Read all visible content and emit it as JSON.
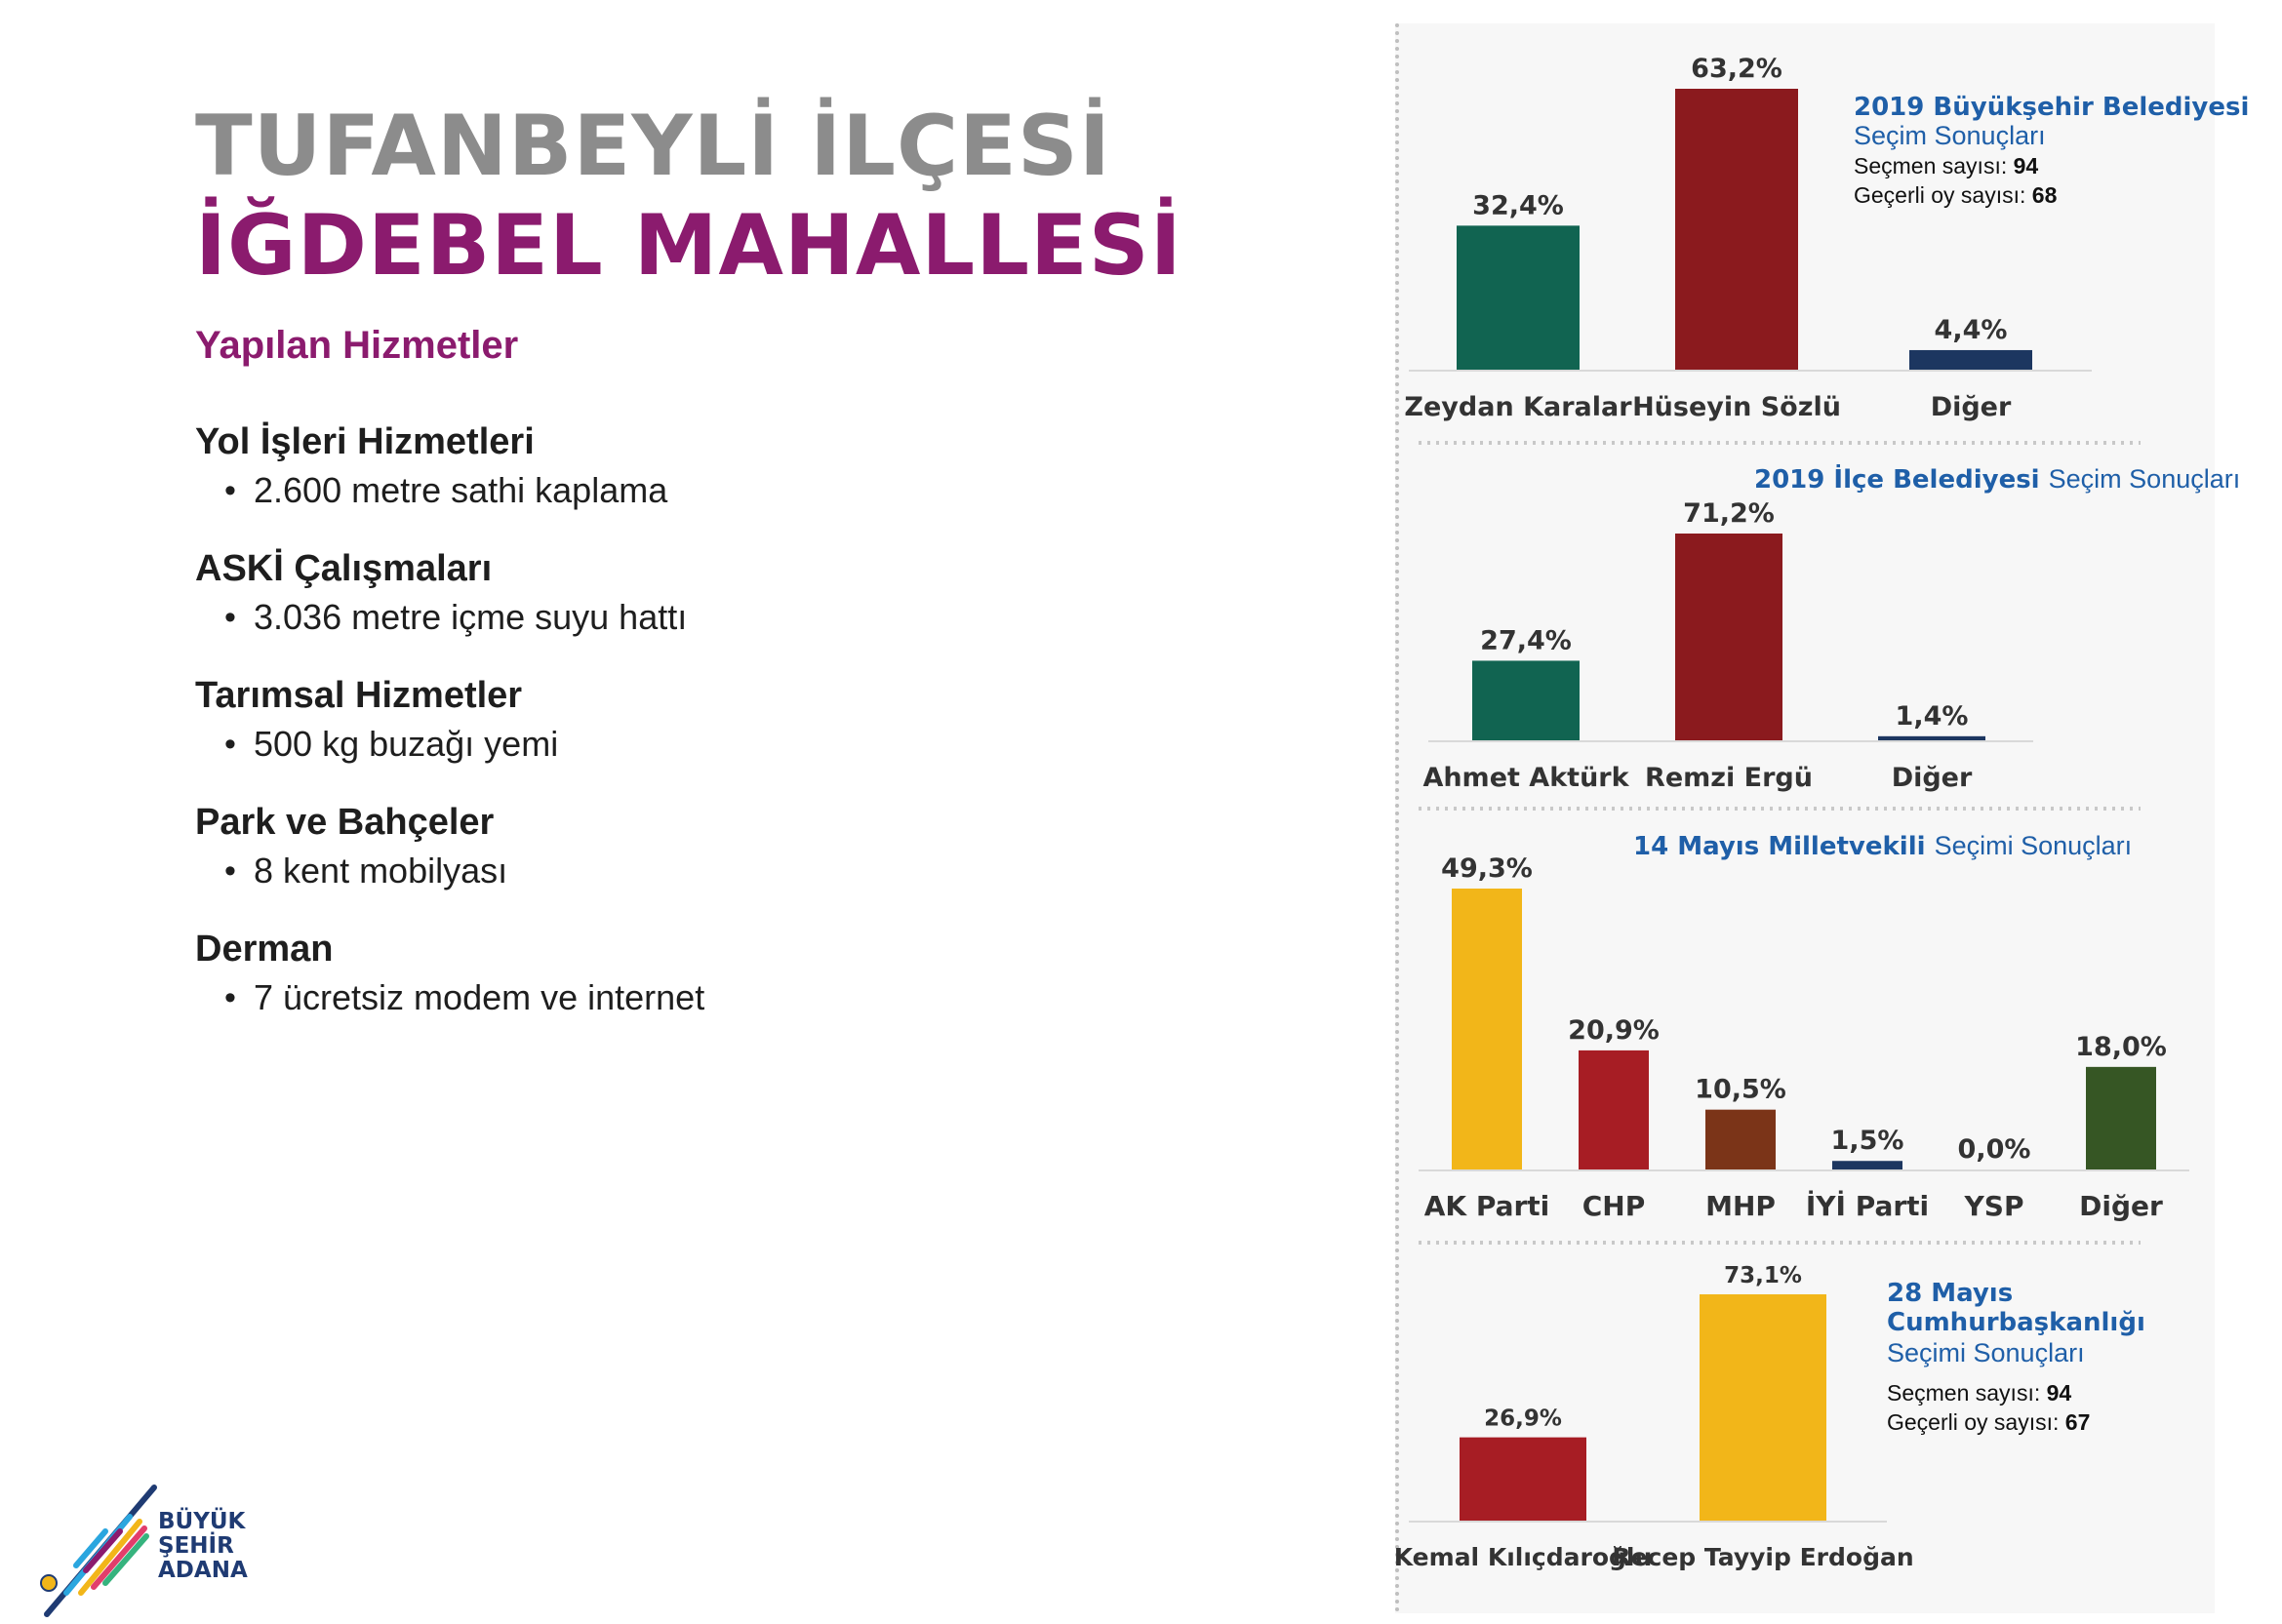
{
  "left": {
    "title_line1": "TUFANBEYLİ İLÇESİ",
    "title_line2": "İĞDEBEL MAHALLESİ",
    "services_heading": "Yapılan Hizmetler",
    "services": [
      {
        "heading": "Yol İşleri Hizmetleri",
        "item": "2.600 metre sathi kaplama"
      },
      {
        "heading": "ASKİ Çalışmaları",
        "item": "3.036 metre içme suyu hattı"
      },
      {
        "heading": "Tarımsal Hizmetler",
        "item": "500 kg buzağı yemi"
      },
      {
        "heading": "Park ve Bahçeler",
        "item": "8 kent mobilyası"
      },
      {
        "heading": "Derman",
        "item": "7 ücretsiz modem ve internet"
      }
    ]
  },
  "logo": {
    "line1": "BÜYÜK",
    "line2": "ŞEHİR",
    "line3": "ADANA"
  },
  "colors": {
    "green": "#116451",
    "darkred": "#8b1a1e",
    "navy": "#1c3660",
    "yellow": "#f2b619",
    "red": "#a71d24",
    "brown": "#7b3418",
    "olive": "#365624",
    "accent_purple": "#8b1b6e",
    "title_gray": "#8c8c8c",
    "chart_title_blue": "#1f5fa8"
  },
  "chart_data": [
    {
      "type": "bar",
      "title_bold": "2019 Büyükşehir Belediyesi",
      "title_rest": "Seçim Sonuçları",
      "info": [
        {
          "label": "Seçmen sayısı:",
          "value": "94"
        },
        {
          "label": "Geçerli oy sayısı:",
          "value": "68"
        }
      ],
      "categories": [
        "Zeydan Karalar",
        "Hüseyin Sözlü",
        "Diğer"
      ],
      "values": [
        32.4,
        63.2,
        4.4
      ],
      "labels": [
        "32,4%",
        "63,2%",
        "4,4%"
      ],
      "colors": [
        "#116451",
        "#8b1a1e",
        "#1c3660"
      ],
      "ylim": [
        0,
        63.2
      ]
    },
    {
      "type": "bar",
      "title_bold": "2019 İlçe Belediyesi",
      "title_rest": "Seçim Sonuçları",
      "categories": [
        "Ahmet Aktürk",
        "Remzi Ergü",
        "Diğer"
      ],
      "values": [
        27.4,
        71.2,
        1.4
      ],
      "labels": [
        "27,4%",
        "71,2%",
        "1,4%"
      ],
      "colors": [
        "#116451",
        "#8b1a1e",
        "#1c3660"
      ],
      "ylim": [
        0,
        71.2
      ]
    },
    {
      "type": "bar",
      "title_bold": "14 Mayıs Milletvekili",
      "title_rest": "Seçimi Sonuçları",
      "categories": [
        "AK Parti",
        "CHP",
        "MHP",
        "İYİ Parti",
        "YSP",
        "Diğer"
      ],
      "values": [
        49.3,
        20.9,
        10.5,
        1.5,
        0.0,
        18.0
      ],
      "labels": [
        "49,3%",
        "20,9%",
        "10,5%",
        "1,5%",
        "0,0%",
        "18,0%"
      ],
      "colors": [
        "#f2b619",
        "#a71d24",
        "#7b3418",
        "#1c3660",
        "#1c3660",
        "#365624"
      ],
      "ylim": [
        0,
        49.3
      ]
    },
    {
      "type": "bar",
      "title_bold": "28 Mayıs Cumhurbaşkanlığı",
      "title_rest": "Seçimi Sonuçları",
      "info": [
        {
          "label": "Seçmen sayısı:",
          "value": "94"
        },
        {
          "label": "Geçerli oy sayısı:",
          "value": "67"
        }
      ],
      "categories": [
        "Kemal Kılıçdaroğlu",
        "Recep Tayyip Erdoğan"
      ],
      "values": [
        26.9,
        73.1
      ],
      "labels": [
        "26,9%",
        "73,1%"
      ],
      "colors": [
        "#a71d24",
        "#f2b619"
      ],
      "ylim": [
        0,
        73.1
      ]
    }
  ]
}
